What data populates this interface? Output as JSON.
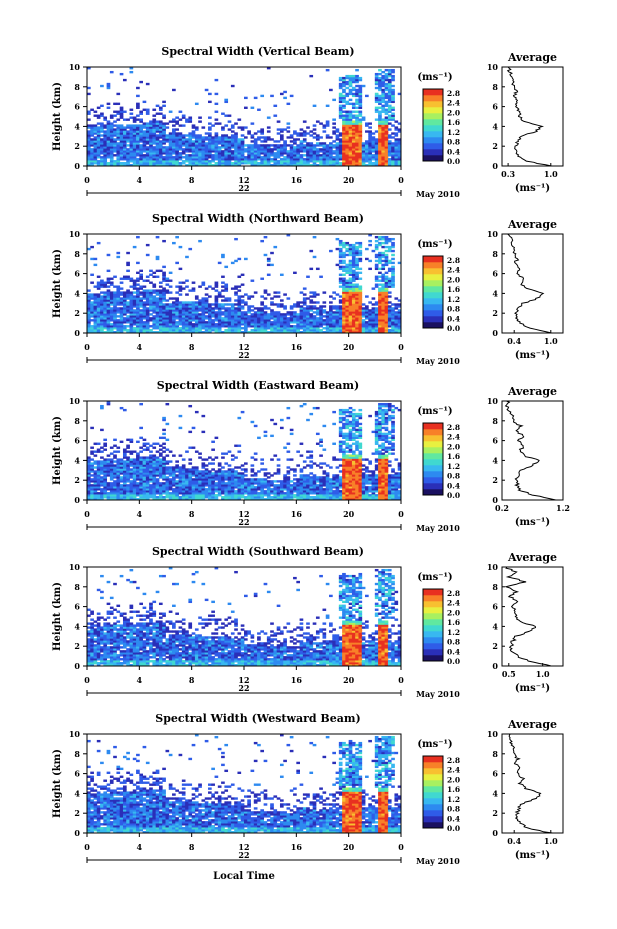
{
  "colorbar_ticks": [
    "0.0",
    "0.4",
    "0.8",
    "1.2",
    "1.6",
    "2.0",
    "2.4",
    "2.8"
  ],
  "colorbar_unit": "(ms⁻¹)",
  "colormap": [
    "#1a1060",
    "#2a2fb8",
    "#2f5ce8",
    "#2d8af0",
    "#38b8f0",
    "#40d8d0",
    "#60e8a0",
    "#a8f060",
    "#e8f040",
    "#f8c030",
    "#f88028",
    "#e83020"
  ],
  "x_ticks": [
    "0",
    "4",
    "8",
    "12",
    "16",
    "20",
    "0"
  ],
  "date_label": "22",
  "month_label": "May 2010",
  "x_axis_title": "Local Time",
  "y_axis_title": "Height (km)",
  "avg_unit": "(ms⁻¹)",
  "chart_data": [
    {
      "type": "heatmap",
      "title": "Spectral Width (Vertical Beam)",
      "ylabel": "Height (km)",
      "xlabel": "Local Time",
      "xlim": [
        0,
        24
      ],
      "ylim": [
        0,
        10
      ],
      "y_ticks": [
        "0",
        "2",
        "4",
        "6",
        "8",
        "10"
      ],
      "clim": [
        0.0,
        2.8
      ],
      "average": {
        "title": "Average",
        "x_ticks": [
          "0.3",
          "1.0"
        ],
        "xlim": [
          0.2,
          1.2
        ],
        "ylim": [
          0,
          10
        ],
        "y_ticks": [
          "0",
          "2",
          "4",
          "6",
          "8",
          "10"
        ],
        "height": [
          0,
          0.5,
          1,
          1.5,
          2,
          2.5,
          3,
          3.5,
          4,
          4.5,
          5,
          5.5,
          6,
          6.5,
          7,
          7.5,
          8,
          8.5,
          9,
          9.5,
          10
        ],
        "value": [
          1.0,
          0.6,
          0.48,
          0.42,
          0.43,
          0.45,
          0.52,
          0.75,
          0.85,
          0.55,
          0.48,
          0.5,
          0.42,
          0.46,
          0.4,
          0.44,
          0.38,
          0.4,
          0.35,
          0.33,
          0.3
        ]
      }
    },
    {
      "type": "heatmap",
      "title": "Spectral Width (Northward Beam)",
      "ylabel": "Height (km)",
      "xlabel": "Local Time",
      "xlim": [
        0,
        24
      ],
      "ylim": [
        0,
        10
      ],
      "y_ticks": [
        "0",
        "2",
        "4",
        "6",
        "8",
        "10"
      ],
      "clim": [
        0.0,
        2.8
      ],
      "average": {
        "title": "Average",
        "x_ticks": [
          "0.4",
          "1.0"
        ],
        "xlim": [
          0.2,
          1.2
        ],
        "ylim": [
          0,
          10
        ],
        "y_ticks": [
          "0",
          "2",
          "4",
          "6",
          "8",
          "10"
        ],
        "height": [
          0,
          0.5,
          1,
          1.5,
          2,
          2.5,
          3,
          3.5,
          4,
          4.5,
          5,
          5.5,
          6,
          6.5,
          7,
          7.5,
          8,
          8.5,
          9,
          9.5,
          10
        ],
        "value": [
          1.0,
          0.65,
          0.5,
          0.45,
          0.44,
          0.48,
          0.55,
          0.78,
          0.88,
          0.6,
          0.52,
          0.55,
          0.46,
          0.5,
          0.42,
          0.45,
          0.4,
          0.38,
          0.36,
          0.34,
          0.32
        ]
      }
    },
    {
      "type": "heatmap",
      "title": "Spectral Width (Eastward Beam)",
      "ylabel": "Height (km)",
      "xlabel": "Local Time",
      "xlim": [
        0,
        24
      ],
      "ylim": [
        0,
        10
      ],
      "y_ticks": [
        "0",
        "2",
        "4",
        "6",
        "8",
        "10"
      ],
      "clim": [
        0.0,
        2.8
      ],
      "average": {
        "title": "Average",
        "x_ticks": [
          "0.2",
          "1.2"
        ],
        "xlim": [
          0.2,
          1.2
        ],
        "ylim": [
          0,
          10
        ],
        "y_ticks": [
          "0",
          "2",
          "4",
          "6",
          "8",
          "10"
        ],
        "height": [
          0,
          0.5,
          1,
          1.5,
          2,
          2.5,
          3,
          3.5,
          4,
          4.5,
          5,
          5.5,
          6,
          6.5,
          7,
          7.5,
          8,
          8.5,
          9,
          9.5,
          10
        ],
        "value": [
          1.1,
          0.7,
          0.5,
          0.45,
          0.44,
          0.46,
          0.52,
          0.7,
          0.8,
          0.55,
          0.5,
          0.56,
          0.48,
          0.55,
          0.42,
          0.5,
          0.38,
          0.36,
          0.3,
          0.28,
          0.3
        ]
      }
    },
    {
      "type": "heatmap",
      "title": "Spectral Width (Southward Beam)",
      "ylabel": "Height (km)",
      "xlabel": "Local Time",
      "xlim": [
        0,
        24
      ],
      "ylim": [
        0,
        10
      ],
      "y_ticks": [
        "0",
        "2",
        "4",
        "6",
        "8",
        "10"
      ],
      "clim": [
        0.0,
        2.8
      ],
      "average": {
        "title": "Average",
        "x_ticks": [
          "0.5",
          "1.0"
        ],
        "xlim": [
          0.4,
          1.3
        ],
        "ylim": [
          0,
          10
        ],
        "y_ticks": [
          "0",
          "2",
          "4",
          "6",
          "8",
          "10"
        ],
        "height": [
          0,
          0.5,
          1,
          1.5,
          2,
          2.5,
          3,
          3.5,
          4,
          4.5,
          5,
          5.5,
          6,
          6.5,
          7,
          7.5,
          8,
          8.5,
          9,
          9.5,
          10
        ],
        "value": [
          1.15,
          0.8,
          0.62,
          0.55,
          0.54,
          0.56,
          0.6,
          0.8,
          0.92,
          0.65,
          0.58,
          0.62,
          0.55,
          0.65,
          0.5,
          0.6,
          0.48,
          0.75,
          0.5,
          0.6,
          0.45
        ]
      }
    },
    {
      "type": "heatmap",
      "title": "Spectral Width (Westward Beam)",
      "ylabel": "Height (km)",
      "xlabel": "Local Time",
      "xlim": [
        0,
        24
      ],
      "ylim": [
        0,
        10
      ],
      "y_ticks": [
        "0",
        "2",
        "4",
        "6",
        "8",
        "10"
      ],
      "clim": [
        0.0,
        2.8
      ],
      "average": {
        "title": "Average",
        "x_ticks": [
          "0.4",
          "1.0"
        ],
        "xlim": [
          0.2,
          1.2
        ],
        "ylim": [
          0,
          10
        ],
        "y_ticks": [
          "0",
          "2",
          "4",
          "6",
          "8",
          "10"
        ],
        "height": [
          0,
          0.5,
          1,
          1.5,
          2,
          2.5,
          3,
          3.5,
          4,
          4.5,
          5,
          5.5,
          6,
          6.5,
          7,
          7.5,
          8,
          8.5,
          9,
          9.5,
          10
        ],
        "value": [
          1.0,
          0.62,
          0.5,
          0.44,
          0.45,
          0.47,
          0.54,
          0.76,
          0.86,
          0.58,
          0.5,
          0.54,
          0.45,
          0.5,
          0.42,
          0.46,
          0.4,
          0.38,
          0.36,
          0.34,
          0.33
        ]
      }
    }
  ]
}
